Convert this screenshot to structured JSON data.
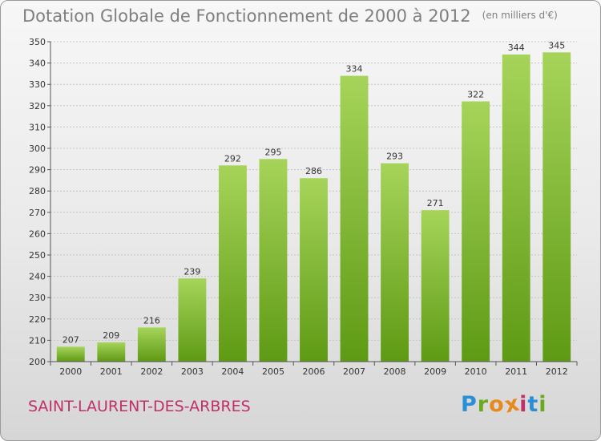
{
  "title": "Dotation Globale de Fonctionnement de 2000 à 2012",
  "unit": "(en milliers d'€)",
  "commune": "SAINT-LAURENT-DES-ARBRES",
  "logo": {
    "letters": [
      "P",
      "r",
      "o",
      "x",
      "i",
      "t",
      "i"
    ],
    "colors": [
      "#2b8fd6",
      "#6aaa1e",
      "#e8891e",
      "#e8891e",
      "#c0306a",
      "#2b8fd6",
      "#6aaa1e"
    ]
  },
  "colors": {
    "bar_top": "#a6d45a",
    "bar_bottom": "#5e9a14",
    "grid": "#c4c4c4"
  },
  "chart_data": {
    "type": "bar",
    "title": "Dotation Globale de Fonctionnement de 2000 à 2012",
    "subtitle": "(en milliers d'€)",
    "categories": [
      "2000",
      "2001",
      "2002",
      "2003",
      "2004",
      "2005",
      "2006",
      "2007",
      "2008",
      "2009",
      "2010",
      "2011",
      "2012"
    ],
    "values": [
      207,
      209,
      216,
      239,
      292,
      295,
      286,
      334,
      293,
      271,
      322,
      344,
      345
    ],
    "ylim": [
      200,
      350
    ],
    "yticks": [
      200,
      210,
      220,
      230,
      240,
      250,
      260,
      270,
      280,
      290,
      300,
      310,
      320,
      330,
      340,
      350
    ],
    "xlabel": "",
    "ylabel": "",
    "grid": true,
    "data_labels": true
  }
}
